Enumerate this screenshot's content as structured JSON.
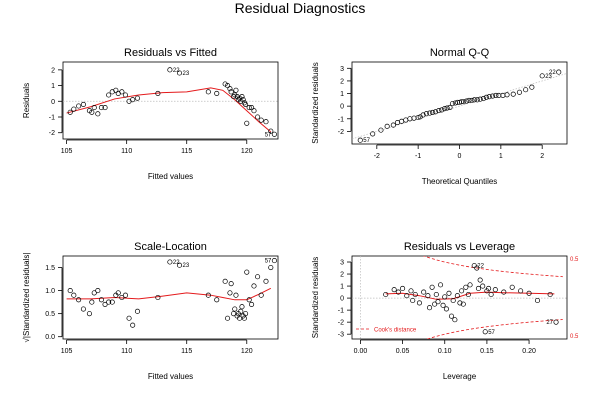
{
  "title": "Residual Diagnostics",
  "chart_data": [
    {
      "type": "scatter",
      "title": "Residuals vs Fitted",
      "xlabel": "Fitted values",
      "ylabel": "Residuals",
      "xlim": [
        104.7,
        122.6
      ],
      "ylim": [
        -2.4,
        2.5
      ],
      "xticks": [
        "105",
        "110",
        "115",
        "120"
      ],
      "yticks": [
        "-2",
        "-1",
        "0",
        "1",
        "2"
      ],
      "ref_y": 0,
      "x": [
        105.3,
        105.6,
        106.0,
        106.4,
        106.9,
        107.1,
        107.3,
        107.6,
        107.9,
        108.2,
        108.5,
        108.8,
        109.1,
        109.3,
        109.6,
        109.9,
        110.2,
        110.5,
        110.9,
        112.6,
        113.6,
        114.4,
        116.8,
        117.5,
        118.2,
        118.4,
        118.6,
        118.7,
        118.9,
        119.0,
        119.1,
        119.2,
        119.3,
        119.4,
        119.5,
        119.6,
        119.7,
        119.8,
        119.9,
        120.0,
        120.2,
        120.4,
        120.6,
        120.9,
        121.2,
        121.6,
        122.0,
        122.3
      ],
      "y": [
        -0.7,
        -0.5,
        -0.3,
        -0.2,
        -0.6,
        -0.7,
        -0.4,
        -0.8,
        -0.4,
        -0.4,
        0.4,
        0.6,
        0.7,
        0.5,
        0.6,
        0.4,
        0.0,
        0.1,
        0.2,
        0.5,
        2.0,
        1.8,
        0.6,
        0.5,
        1.1,
        1.0,
        0.8,
        0.6,
        0.3,
        0.4,
        0.7,
        0.3,
        0.1,
        0.2,
        0.0,
        0.3,
        0.1,
        -0.1,
        -0.2,
        -1.4,
        -0.4,
        -0.4,
        -0.6,
        -1.0,
        -1.2,
        -1.3,
        -1.9,
        -2.1
      ],
      "smooth_x": [
        105,
        107,
        109,
        111,
        113,
        115,
        117,
        118,
        119,
        120,
        121,
        122
      ],
      "smooth_y": [
        -0.75,
        -0.35,
        0.15,
        0.4,
        0.55,
        0.6,
        0.85,
        0.7,
        0.1,
        -0.6,
        -1.3,
        -1.95
      ],
      "point_labels": [
        {
          "i": 20,
          "text": "22"
        },
        {
          "i": 21,
          "text": "23"
        },
        {
          "i": 47,
          "text": "57"
        }
      ]
    },
    {
      "type": "scatter",
      "title": "Normal Q-Q",
      "xlabel": "Theoretical Quantiles",
      "ylabel": "Standardized residuals",
      "xlim": [
        -2.6,
        2.6
      ],
      "ylim": [
        -3.0,
        3.5
      ],
      "xticks": [
        "-2",
        "-1",
        "0",
        "1",
        "2"
      ],
      "yticks": [
        "-2",
        "-1",
        "0",
        "1",
        "2",
        "3"
      ],
      "ref_line": [
        [
          -2.6,
          -2.6
        ],
        [
          2.6,
          2.6
        ]
      ],
      "x": [
        -2.4,
        -2.1,
        -1.9,
        -1.75,
        -1.6,
        -1.5,
        -1.4,
        -1.3,
        -1.2,
        -1.1,
        -1.0,
        -0.95,
        -0.88,
        -0.8,
        -0.72,
        -0.65,
        -0.58,
        -0.5,
        -0.43,
        -0.36,
        -0.3,
        -0.23,
        -0.17,
        -0.1,
        -0.05,
        0.0,
        0.05,
        0.1,
        0.17,
        0.23,
        0.3,
        0.36,
        0.43,
        0.5,
        0.58,
        0.65,
        0.72,
        0.8,
        0.88,
        0.95,
        1.05,
        1.15,
        1.3,
        1.45,
        1.6,
        1.75,
        2.0,
        2.4
      ],
      "y": [
        -2.7,
        -2.2,
        -1.9,
        -1.6,
        -1.5,
        -1.3,
        -1.2,
        -1.1,
        -1.0,
        -0.95,
        -0.9,
        -0.85,
        -0.7,
        -0.6,
        -0.55,
        -0.5,
        -0.45,
        -0.35,
        -0.3,
        -0.2,
        -0.15,
        -0.1,
        0.2,
        0.25,
        0.3,
        0.3,
        0.35,
        0.35,
        0.4,
        0.45,
        0.45,
        0.5,
        0.5,
        0.55,
        0.6,
        0.7,
        0.75,
        0.8,
        0.85,
        0.85,
        0.85,
        0.9,
        0.95,
        1.1,
        1.3,
        1.5,
        2.4,
        2.7
      ],
      "point_labels": [
        {
          "i": 0,
          "text": "57"
        },
        {
          "i": 46,
          "text": "23"
        },
        {
          "i": 47,
          "text": "22"
        }
      ]
    },
    {
      "type": "scatter",
      "title": "Scale-Location",
      "xlabel": "Fitted values",
      "ylabel": "√|Standardized residuals|",
      "xlim": [
        104.7,
        122.6
      ],
      "ylim": [
        -0.05,
        1.75
      ],
      "xticks": [
        "105",
        "110",
        "115",
        "120"
      ],
      "yticks": [
        "0.0",
        "0.5",
        "1.0",
        "1.5"
      ],
      "x": [
        105.3,
        105.6,
        106.0,
        106.4,
        106.9,
        107.1,
        107.3,
        107.6,
        107.9,
        108.2,
        108.5,
        108.8,
        109.1,
        109.3,
        109.6,
        109.9,
        110.2,
        110.5,
        110.9,
        112.6,
        113.6,
        114.4,
        116.8,
        117.5,
        118.2,
        118.4,
        118.6,
        118.7,
        118.9,
        119.0,
        119.1,
        119.2,
        119.3,
        119.4,
        119.5,
        119.6,
        119.7,
        119.8,
        119.9,
        120.0,
        120.2,
        120.4,
        120.6,
        120.9,
        121.2,
        121.6,
        122.0,
        122.3
      ],
      "y": [
        1.0,
        0.9,
        0.8,
        0.6,
        0.5,
        0.75,
        0.95,
        1.0,
        0.8,
        0.7,
        0.75,
        0.75,
        0.9,
        0.95,
        0.85,
        0.9,
        0.4,
        0.25,
        0.55,
        0.85,
        1.62,
        1.55,
        0.9,
        0.8,
        1.2,
        0.4,
        0.95,
        1.15,
        0.5,
        0.6,
        0.9,
        0.45,
        0.5,
        0.4,
        0.55,
        0.65,
        0.45,
        0.4,
        0.5,
        1.4,
        0.8,
        0.7,
        1.1,
        1.3,
        0.9,
        1.2,
        1.5,
        1.65
      ],
      "smooth_x": [
        105,
        107,
        109,
        111,
        113,
        115,
        117,
        118,
        119,
        120,
        121,
        122
      ],
      "smooth_y": [
        0.82,
        0.82,
        0.85,
        0.82,
        0.88,
        0.95,
        0.9,
        0.85,
        0.8,
        0.8,
        0.92,
        1.05
      ],
      "point_labels": [
        {
          "i": 20,
          "text": "22"
        },
        {
          "i": 21,
          "text": "23"
        },
        {
          "i": 47,
          "text": "57"
        }
      ]
    },
    {
      "type": "scatter",
      "title": "Residuals vs Leverage",
      "xlabel": "Leverage",
      "ylabel": "Standardized residuals",
      "xlim": [
        -0.01,
        0.245
      ],
      "ylim": [
        -3.4,
        3.5
      ],
      "xticks": [
        "0.00",
        "0.05",
        "0.10",
        "0.15",
        "0.20"
      ],
      "yticks": [
        "-3",
        "-2",
        "-1",
        "0",
        "1",
        "2",
        "3"
      ],
      "ref_y": 0,
      "ref_x": 0,
      "legend": "Cook's distance",
      "cook_levels": [
        "0.5",
        "0.5"
      ],
      "x": [
        0.03,
        0.04,
        0.045,
        0.05,
        0.055,
        0.06,
        0.062,
        0.065,
        0.07,
        0.075,
        0.08,
        0.082,
        0.085,
        0.088,
        0.09,
        0.092,
        0.095,
        0.098,
        0.1,
        0.102,
        0.105,
        0.108,
        0.11,
        0.112,
        0.115,
        0.118,
        0.12,
        0.122,
        0.125,
        0.128,
        0.13,
        0.135,
        0.138,
        0.14,
        0.142,
        0.145,
        0.148,
        0.15,
        0.152,
        0.155,
        0.16,
        0.17,
        0.18,
        0.19,
        0.2,
        0.21,
        0.225,
        0.232
      ],
      "y": [
        0.3,
        0.7,
        0.5,
        0.8,
        0.2,
        0.6,
        -0.2,
        0.3,
        -0.4,
        0.5,
        0.2,
        -0.8,
        0.9,
        -0.5,
        0.3,
        -0.3,
        1.1,
        -0.6,
        0.1,
        -0.9,
        0.4,
        -1.5,
        -0.2,
        -1.8,
        0.2,
        -0.4,
        0.6,
        -0.5,
        0.9,
        0.3,
        1.1,
        2.7,
        2.5,
        0.8,
        1.5,
        1.0,
        -2.8,
        0.6,
        0.8,
        0.3,
        0.7,
        0.5,
        0.9,
        0.6,
        0.4,
        -0.2,
        0.3,
        -2.0
      ],
      "smooth_x": [
        0.03,
        0.05,
        0.07,
        0.09,
        0.11,
        0.13,
        0.15,
        0.17,
        0.2,
        0.23
      ],
      "smooth_y": [
        0.35,
        0.4,
        0.2,
        -0.1,
        -0.05,
        0.4,
        0.5,
        0.45,
        0.4,
        0.35
      ],
      "point_labels": [
        {
          "i": 31,
          "text": "22"
        },
        {
          "i": 36,
          "text": "57"
        },
        {
          "i": 47,
          "text": "27"
        }
      ]
    }
  ]
}
